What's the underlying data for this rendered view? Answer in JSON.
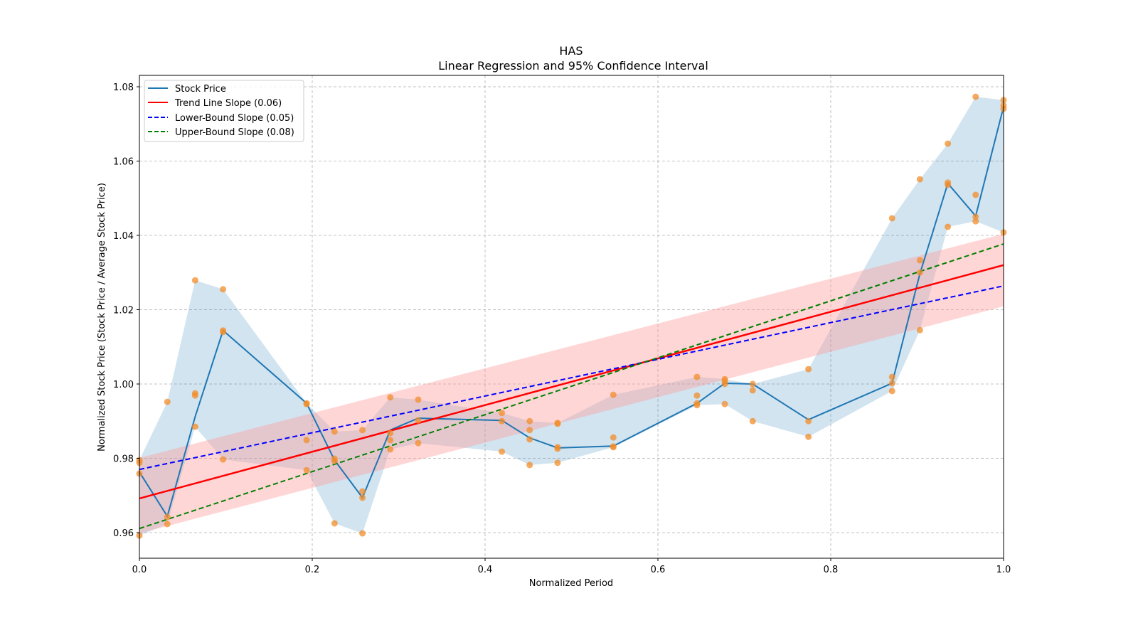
{
  "chart_data": {
    "type": "line",
    "title": "HAS",
    "subtitle": "Linear Regression and 95% Confidence Interval",
    "xlabel": "Normalized Period",
    "ylabel": "Normalized Stock Price (Stock Price / Average Stock Price)",
    "xlim": [
      0.0,
      1.0
    ],
    "ylim": [
      0.953,
      1.083
    ],
    "xticks": [
      0.0,
      0.2,
      0.4,
      0.6,
      0.8,
      1.0
    ],
    "xtick_labels": [
      "0.0",
      "0.2",
      "0.4",
      "0.6",
      "0.8",
      "1.0"
    ],
    "yticks": [
      0.96,
      0.98,
      1.0,
      1.02,
      1.04,
      1.06,
      1.08
    ],
    "ytick_labels": [
      "0.96",
      "0.98",
      "1.00",
      "1.02",
      "1.04",
      "1.06",
      "1.08"
    ],
    "grid": true,
    "legend_position": "top-left",
    "legend": [
      {
        "label": "Stock Price",
        "color": "#1f77b4",
        "style": "solid"
      },
      {
        "label": "Trend Line Slope (0.06)",
        "color": "#ff0000",
        "style": "solid"
      },
      {
        "label": "Lower-Bound Slope (0.05)",
        "color": "#0000ff",
        "style": "dashed"
      },
      {
        "label": "Upper-Bound Slope (0.08)",
        "color": "#008000",
        "style": "dashed"
      }
    ],
    "colors": {
      "stock_line": "#1f77b4",
      "scatter": "#f28e2b",
      "band": "#1f77b4",
      "trend": "#ff0000",
      "trend_ci": "#ff9999",
      "lower": "#0000ff",
      "upper": "#008000"
    },
    "stock_price": {
      "x": [
        0.0,
        0.0323,
        0.0645,
        0.0968,
        0.1935,
        0.2258,
        0.2581,
        0.2903,
        0.3226,
        0.4194,
        0.4516,
        0.4839,
        0.5484,
        0.6452,
        0.6774,
        0.7097,
        0.7742,
        0.871,
        0.9032,
        0.9355,
        0.9677,
        1.0
      ],
      "y": [
        0.9763,
        0.9644,
        0.9912,
        1.0144,
        0.9948,
        0.9795,
        0.9694,
        0.9876,
        0.9908,
        0.9902,
        0.9855,
        0.9828,
        0.9833,
        0.9948,
        1.0002,
        1.0,
        0.9904,
        1.0002,
        1.0297,
        1.054,
        1.0452,
        1.0746
      ]
    },
    "scatter": [
      {
        "x": 0.0,
        "y": [
          0.9795,
          0.9788,
          0.9759,
          0.9592
        ]
      },
      {
        "x": 0.0323,
        "y": [
          0.9952,
          0.9642,
          0.9623
        ]
      },
      {
        "x": 0.0645,
        "y": [
          1.0279,
          0.9975,
          0.9969,
          0.9885
        ]
      },
      {
        "x": 0.0968,
        "y": [
          1.0255,
          1.0144,
          1.014,
          0.9797
        ]
      },
      {
        "x": 0.1935,
        "y": [
          0.9948,
          0.9946,
          0.9849,
          0.9768
        ]
      },
      {
        "x": 0.2258,
        "y": [
          0.9872,
          0.9799,
          0.9793,
          0.9625
        ]
      },
      {
        "x": 0.2581,
        "y": [
          0.9876,
          0.9711,
          0.9694,
          0.9598
        ]
      },
      {
        "x": 0.2903,
        "y": [
          0.9964,
          0.9868,
          0.9849,
          0.9824
        ]
      },
      {
        "x": 0.3226,
        "y": [
          0.9958,
          0.9902,
          0.9841
        ]
      },
      {
        "x": 0.4194,
        "y": [
          0.9922,
          0.99,
          0.9818
        ]
      },
      {
        "x": 0.4516,
        "y": [
          0.99,
          0.9876,
          0.9851,
          0.9782
        ]
      },
      {
        "x": 0.4839,
        "y": [
          0.9895,
          0.9893,
          0.983,
          0.9826,
          0.9788
        ]
      },
      {
        "x": 0.5484,
        "y": [
          0.9971,
          0.9856,
          0.9832,
          0.983
        ]
      },
      {
        "x": 0.6452,
        "y": [
          1.0019,
          0.9969,
          0.9948,
          0.9943
        ]
      },
      {
        "x": 0.6774,
        "y": [
          1.0013,
          1.0008,
          1.0,
          0.9946
        ]
      },
      {
        "x": 0.7097,
        "y": [
          1.0,
          0.9983,
          0.99
        ]
      },
      {
        "x": 0.7742,
        "y": [
          1.004,
          0.99,
          0.9858
        ]
      },
      {
        "x": 0.871,
        "y": [
          1.0446,
          1.0019,
          1.0002,
          0.9981
        ]
      },
      {
        "x": 0.9032,
        "y": [
          1.0551,
          1.0333,
          1.03,
          1.0145
        ]
      },
      {
        "x": 0.9355,
        "y": [
          1.0647,
          1.0542,
          1.0536,
          1.0423
        ]
      },
      {
        "x": 0.9677,
        "y": [
          1.0773,
          1.0509,
          1.045,
          1.0438
        ]
      },
      {
        "x": 1.0,
        "y": [
          1.0764,
          1.075,
          1.0741,
          1.0408
        ]
      }
    ],
    "trend_line": {
      "intercept": 0.9692,
      "slope": 0.0628
    },
    "trend_ci": {
      "lower_at_0": 0.9598,
      "upper_at_0": 0.9801,
      "lower_at_1": 1.0209,
      "upper_at_1": 1.0404
    },
    "lower_bound_line": {
      "intercept": 0.977,
      "slope": 0.0494
    },
    "upper_bound_line": {
      "intercept": 0.9611,
      "slope": 0.0766
    }
  }
}
